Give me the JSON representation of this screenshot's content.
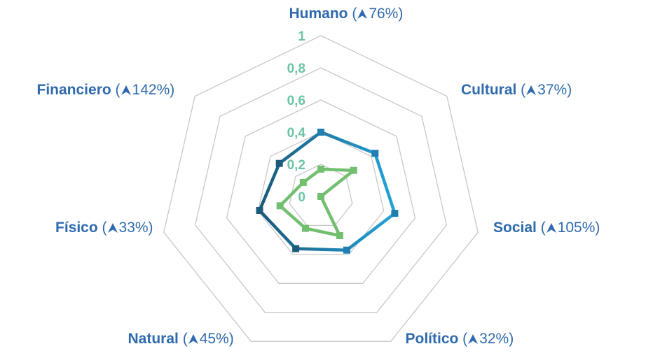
{
  "chart_data": {
    "type": "radar",
    "axes": [
      {
        "name": "Humano",
        "change": "76%"
      },
      {
        "name": "Cultural",
        "change": "37%"
      },
      {
        "name": "Social",
        "change": "105%"
      },
      {
        "name": "Político",
        "change": "32%"
      },
      {
        "name": "Natural",
        "change": "45%"
      },
      {
        "name": "Físico",
        "change": "33%"
      },
      {
        "name": "Financiero",
        "change": "142%"
      }
    ],
    "r_ticks": [
      "0",
      "0,2",
      "0,4",
      "0,6",
      "0,8",
      "1"
    ],
    "r_range": [
      0,
      1
    ],
    "series": [
      {
        "values": [
          0.4,
          0.43,
          0.47,
          0.37,
          0.36,
          0.39,
          0.33
        ],
        "color": "#1e7fb8"
      },
      {
        "values": [
          0.17,
          0.26,
          0.0,
          0.27,
          0.22,
          0.26,
          0.14
        ],
        "color": "#72c06f"
      }
    ]
  },
  "colors": {
    "label": "#2e6aad",
    "tick": "#6cc4a4",
    "grid": "#c8c8c8",
    "series_dark": "#1a5c7a",
    "series_light": "#29a0d8"
  },
  "icons": {
    "change_indicator": "arrow-up-icon"
  }
}
